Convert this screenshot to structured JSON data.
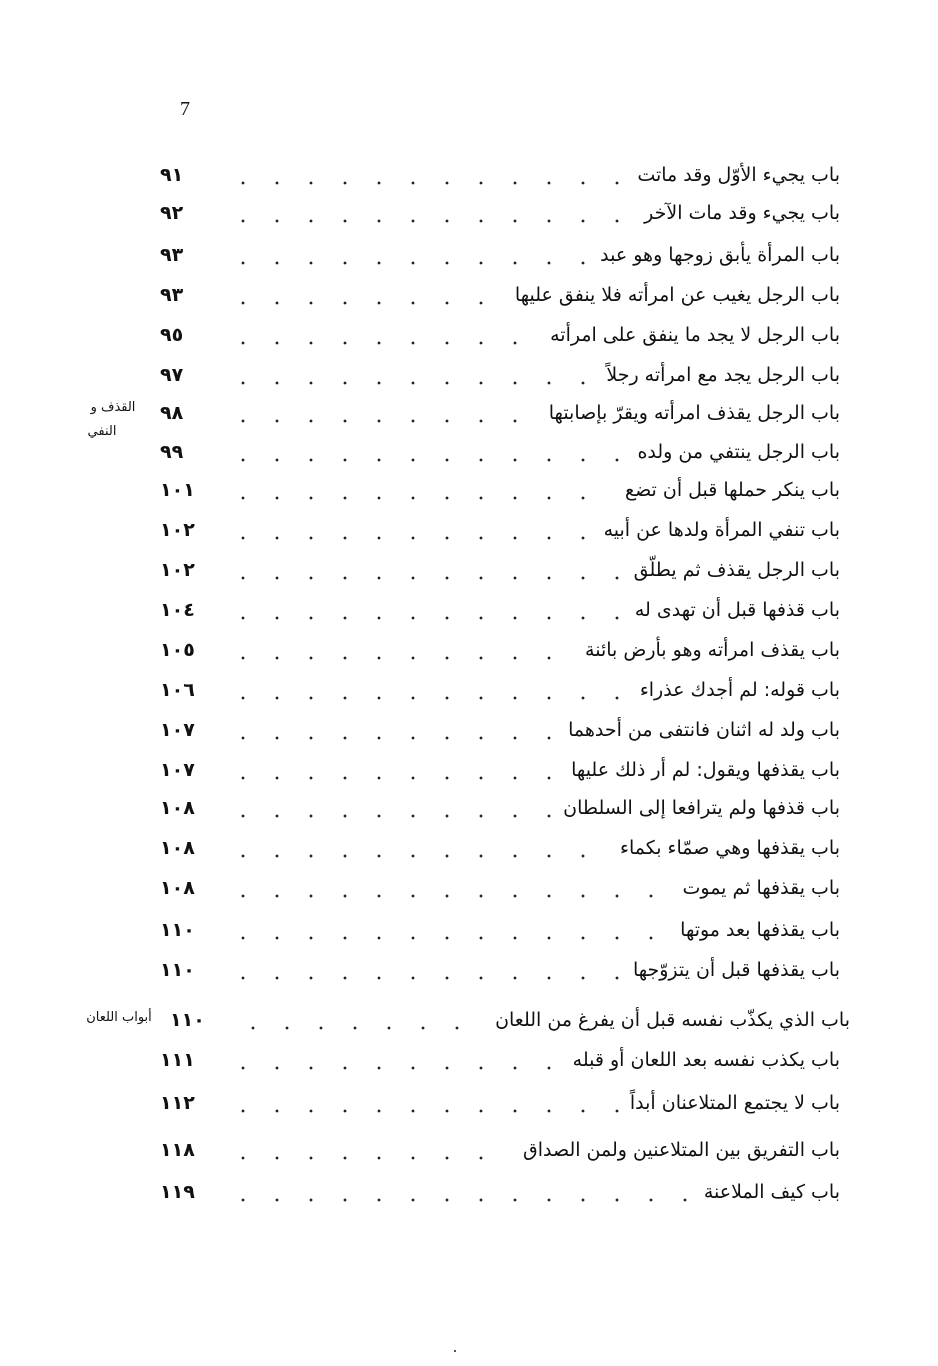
{
  "page_number": "7",
  "entries": [
    {
      "title": "باب يجيء الأوّل وقد ماتت",
      "page": "٩١"
    },
    {
      "title": "باب يجيء وقد مات الآخر",
      "page": "٩٢"
    },
    {
      "title": "باب المرأة يأبق زوجها وهو عبد",
      "page": "٩٣"
    },
    {
      "title": "باب الرجل يغيب عن امرأته فلا ينفق عليها",
      "page": "٩٣"
    },
    {
      "title": "باب الرجل لا يجد ما ينفق على امرأته",
      "page": "٩٥"
    },
    {
      "title": "باب الرجل يجد مع امرأته رجلاً",
      "page": "٩٧"
    },
    {
      "title": "باب الرجل يقذف امرأته ويقرّ بإصابتها",
      "page": "٩٨"
    },
    {
      "title": "باب الرجل ينتفي من ولده",
      "page": "٩٩"
    },
    {
      "title": "باب ينكر حملها قبل أن تضع",
      "page": "١٠١"
    },
    {
      "title": "باب تنفي المرأة ولدها عن أبيه",
      "page": "١٠٢"
    },
    {
      "title": "باب الرجل يقذف ثم يطلّق",
      "page": "١٠٢"
    },
    {
      "title": "باب قذفها قبل أن تهدى له",
      "page": "١٠٤"
    },
    {
      "title": "باب يقذف امرأته وهو بأرض بائنة",
      "page": "١٠٥"
    },
    {
      "title": "باب قوله: لم أجدك عذراء",
      "page": "١٠٦"
    },
    {
      "title": "باب ولد له اثنان فانتفى من أحدهما",
      "page": "١٠٧"
    },
    {
      "title": "باب يقذفها ويقول: لم أر ذلك عليها",
      "page": "١٠٧"
    },
    {
      "title": "باب قذفها ولم يترافعا إلى السلطان",
      "page": "١٠٨"
    },
    {
      "title": "باب يقذفها وهي صمّاء بكماء",
      "page": "١٠٨"
    },
    {
      "title": "باب يقذفها ثم يموت",
      "page": "١٠٨"
    },
    {
      "title": "باب يقذفها بعد موتها",
      "page": "١١٠"
    },
    {
      "title": "باب يقذفها قبل أن يتزوّجها",
      "page": "١١٠"
    },
    {
      "title": "باب الذي يكذّب نفسه قبل أن يفرغ من اللعان",
      "page": "١١٠"
    },
    {
      "title": "باب يكذب نفسه بعد اللعان أو قبله",
      "page": "١١١"
    },
    {
      "title": "باب لا يجتمع المتلاعنان أبداً",
      "page": "١١٢"
    },
    {
      "title": "باب التفريق بين المتلاعنين ولمن الصداق",
      "page": "١١٨"
    },
    {
      "title": "باب كيف الملاعنة",
      "page": "١١٩"
    }
  ],
  "side_notes": {
    "qadhf": {
      "line1": "القذف و",
      "line2": "النفي"
    },
    "lian": "أبواب اللعان"
  }
}
